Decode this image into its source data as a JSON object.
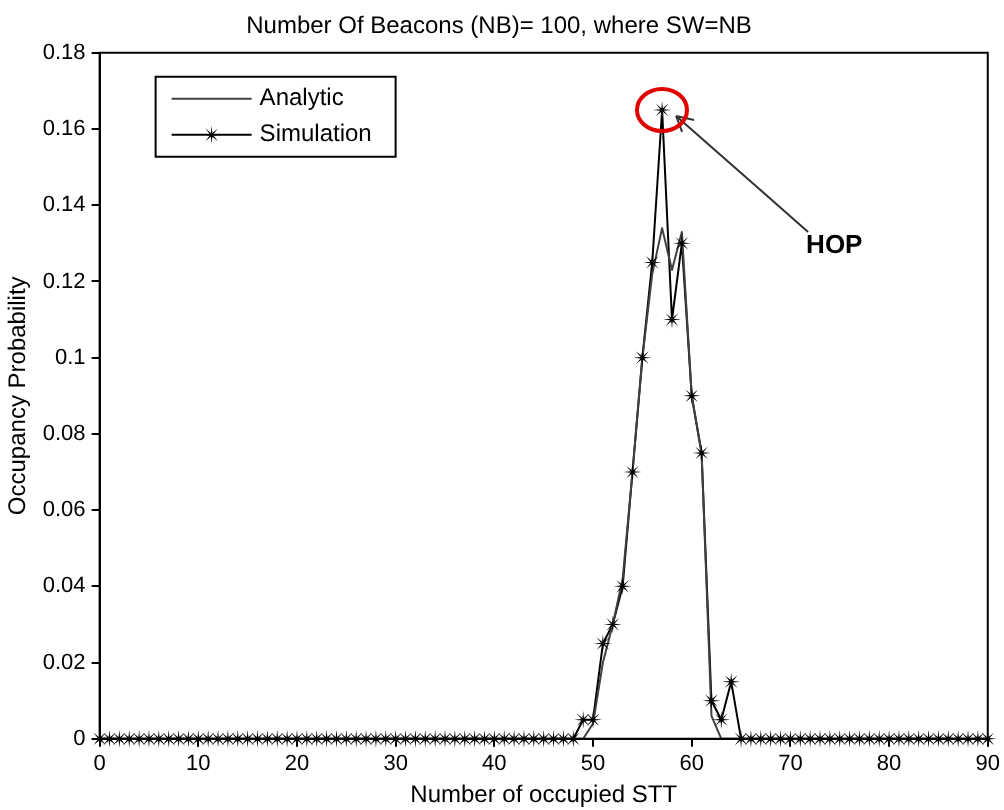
{
  "chart_data": {
    "type": "line",
    "title": "Number Of Beacons (NB)= 100, where SW=NB",
    "xlabel": "Number of occupied STT",
    "ylabel": "Occupancy Probability",
    "x": [
      0,
      1,
      2,
      3,
      4,
      5,
      6,
      7,
      8,
      9,
      10,
      11,
      12,
      13,
      14,
      15,
      16,
      17,
      18,
      19,
      20,
      21,
      22,
      23,
      24,
      25,
      26,
      27,
      28,
      29,
      30,
      31,
      32,
      33,
      34,
      35,
      36,
      37,
      38,
      39,
      40,
      41,
      42,
      43,
      44,
      45,
      46,
      47,
      48,
      49,
      50,
      51,
      52,
      53,
      54,
      55,
      56,
      57,
      58,
      59,
      60,
      61,
      62,
      63,
      64,
      65,
      66,
      67,
      68,
      69,
      70,
      71,
      72,
      73,
      74,
      75,
      76,
      77,
      78,
      79,
      80,
      81,
      82,
      83,
      84,
      85,
      86,
      87,
      88,
      89,
      90
    ],
    "series": [
      {
        "name": "Analytic",
        "color": "#404040",
        "marker": "none",
        "values": [
          0,
          0,
          0,
          0,
          0,
          0,
          0,
          0,
          0,
          0,
          0,
          0,
          0,
          0,
          0,
          0,
          0,
          0,
          0,
          0,
          0,
          0,
          0,
          0,
          0,
          0,
          0,
          0,
          0,
          0,
          0,
          0,
          0,
          0,
          0,
          0,
          0,
          0,
          0,
          0,
          0,
          0,
          0,
          0,
          0,
          0,
          0,
          0,
          0,
          0,
          0.004,
          0.02,
          0.03,
          0.042,
          0.07,
          0.1,
          0.122,
          0.134,
          0.123,
          0.133,
          0.09,
          0.075,
          0.006,
          0,
          0,
          0,
          0,
          0,
          0,
          0,
          0,
          0,
          0,
          0,
          0,
          0,
          0,
          0,
          0,
          0,
          0,
          0,
          0,
          0,
          0,
          0,
          0,
          0,
          0,
          0,
          0
        ]
      },
      {
        "name": "Simulation",
        "color": "#000000",
        "marker": "star",
        "values": [
          0,
          0,
          0,
          0,
          0,
          0,
          0,
          0,
          0,
          0,
          0,
          0,
          0,
          0,
          0,
          0,
          0,
          0,
          0,
          0,
          0,
          0,
          0,
          0,
          0,
          0,
          0,
          0,
          0,
          0,
          0,
          0,
          0,
          0,
          0,
          0,
          0,
          0,
          0,
          0,
          0,
          0,
          0,
          0,
          0,
          0,
          0,
          0,
          0,
          0.005,
          0.005,
          0.025,
          0.03,
          0.04,
          0.07,
          0.1,
          0.125,
          0.165,
          0.11,
          0.13,
          0.09,
          0.075,
          0.01,
          0.005,
          0.015,
          0,
          0,
          0,
          0,
          0,
          0,
          0,
          0,
          0,
          0,
          0,
          0,
          0,
          0,
          0,
          0,
          0,
          0,
          0,
          0,
          0,
          0,
          0,
          0,
          0,
          0
        ]
      }
    ],
    "xlim": [
      0,
      90
    ],
    "xticks": [
      0,
      10,
      20,
      30,
      40,
      50,
      60,
      70,
      80,
      90
    ],
    "ylim": [
      0,
      0.18
    ],
    "yticks": [
      0,
      0.02,
      0.04,
      0.06,
      0.08,
      0.1,
      0.12,
      0.14,
      0.16,
      0.18
    ],
    "grid": false,
    "legend": "top left",
    "line_style": "solid",
    "annotations": [
      {
        "text": "HOP",
        "x": 57,
        "y": 0.165
      }
    ]
  }
}
